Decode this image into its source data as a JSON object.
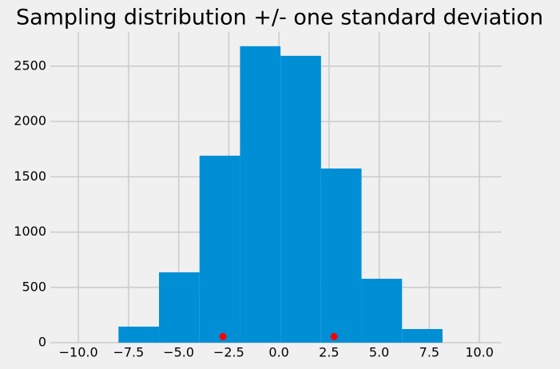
{
  "chart_data": {
    "type": "histogram",
    "title": "Sampling distribution +/- one standard deviation",
    "bins": [
      -8.0,
      -5.98,
      -3.96,
      -1.94,
      0.08,
      2.1,
      4.12,
      6.14,
      8.16
    ],
    "values": [
      145,
      636,
      1691,
      2681,
      2594,
      1575,
      578,
      123
    ],
    "color": "#008fd5",
    "markers": {
      "color": "#ff0000",
      "x": [
        -2.79,
        2.75
      ],
      "y": [
        55,
        55
      ]
    },
    "xlim": [
      -11.4,
      11.11
    ],
    "ylim": [
      0,
      2810
    ],
    "xticks": [
      {
        "value": -10,
        "label": "−10.0"
      },
      {
        "value": -7.5,
        "label": "−7.5"
      },
      {
        "value": -5,
        "label": "−5.0"
      },
      {
        "value": -2.5,
        "label": "−2.5"
      },
      {
        "value": 0,
        "label": "0.0"
      },
      {
        "value": 2.5,
        "label": "2.5"
      },
      {
        "value": 5,
        "label": "5.0"
      },
      {
        "value": 7.5,
        "label": "7.5"
      },
      {
        "value": 10,
        "label": "10.0"
      }
    ],
    "yticks": [
      0,
      500,
      1000,
      1500,
      2000,
      2500
    ],
    "grid": true
  }
}
